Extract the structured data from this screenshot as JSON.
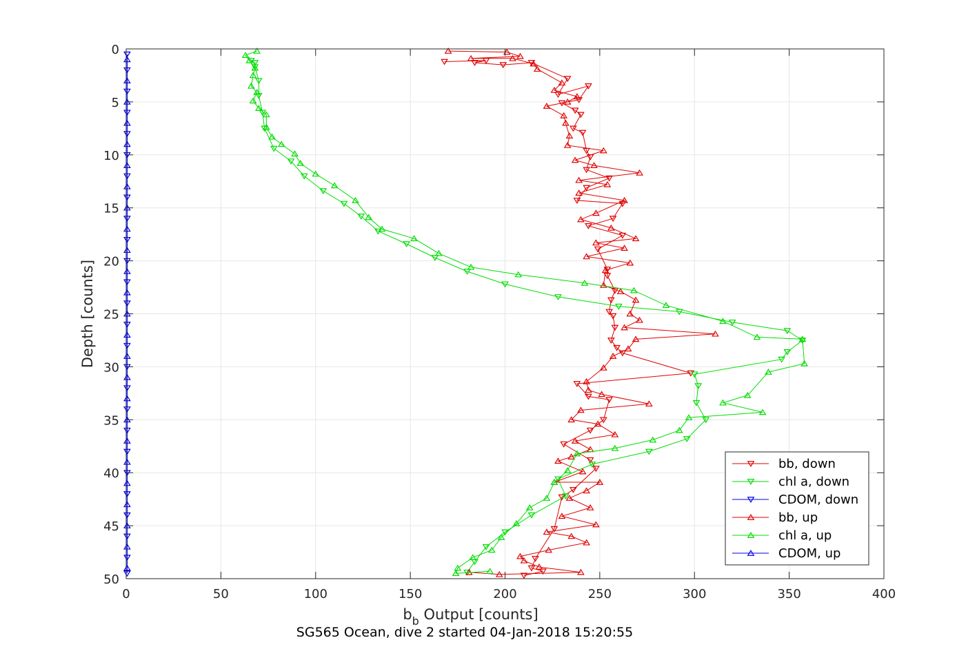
{
  "chart_data": {
    "type": "line",
    "xlabel_main": "b",
    "xlabel_sub": "b",
    "xlabel_rest": " Output [counts]",
    "ylabel": "Depth [counts]",
    "title": "SG565 Ocean, dive 2 started 04-Jan-2018 15:20:55",
    "xlim": [
      0,
      400
    ],
    "ylim": [
      0,
      50
    ],
    "y_reversed": true,
    "grid": true,
    "x_ticks": [
      "0",
      "50",
      "100",
      "150",
      "200",
      "250",
      "300",
      "350",
      "400"
    ],
    "y_ticks": [
      "0",
      "5",
      "10",
      "15",
      "20",
      "25",
      "30",
      "35",
      "40",
      "45",
      "50"
    ],
    "legend_position": "bottom-right",
    "series": [
      {
        "name": "bb, down",
        "color": "#e00000",
        "marker": "triangle-down",
        "points": [
          [
            168,
            1.2
          ],
          [
            190,
            1.1
          ],
          [
            184,
            1.3
          ],
          [
            199,
            1.5
          ],
          [
            214,
            1.3
          ],
          [
            233,
            2.8
          ],
          [
            228,
            4.3
          ],
          [
            244,
            3.5
          ],
          [
            239,
            4.8
          ],
          [
            230,
            5.1
          ],
          [
            237,
            5.8
          ],
          [
            240,
            6.2
          ],
          [
            236,
            7.5
          ],
          [
            241,
            7.9
          ],
          [
            243,
            9.6
          ],
          [
            245,
            10.2
          ],
          [
            243,
            11.4
          ],
          [
            255,
            12.2
          ],
          [
            243,
            13.1
          ],
          [
            238,
            14.3
          ],
          [
            262,
            14.6
          ],
          [
            257,
            16.0
          ],
          [
            244,
            16.7
          ],
          [
            262,
            17.6
          ],
          [
            249,
            18.9
          ],
          [
            254,
            20.8
          ],
          [
            254,
            21.4
          ],
          [
            258,
            22.8
          ],
          [
            256,
            23.7
          ],
          [
            255,
            24.8
          ],
          [
            257,
            25.2
          ],
          [
            258,
            26.3
          ],
          [
            256,
            27.5
          ],
          [
            259,
            28.2
          ],
          [
            262,
            28.7
          ],
          [
            298,
            30.6
          ],
          [
            238,
            31.6
          ],
          [
            244,
            32.8
          ],
          [
            255,
            33.1
          ],
          [
            252,
            35.0
          ],
          [
            245,
            36.0
          ],
          [
            231,
            37.3
          ],
          [
            245,
            38.8
          ],
          [
            248,
            39.6
          ],
          [
            236,
            41.6
          ],
          [
            230,
            42.3
          ],
          [
            226,
            45.3
          ],
          [
            216,
            48.1
          ],
          [
            214,
            49.0
          ],
          [
            220,
            49.3
          ],
          [
            210,
            49.7
          ]
        ]
      },
      {
        "name": "chl a, down",
        "color": "#00dd00",
        "marker": "triangle-down",
        "points": [
          [
            66,
            1.1
          ],
          [
            68,
            1.3
          ],
          [
            68,
            1.7
          ],
          [
            70,
            3.0
          ],
          [
            70,
            4.4
          ],
          [
            72,
            6.0
          ],
          [
            73,
            7.5
          ],
          [
            78,
            9.4
          ],
          [
            87,
            10.6
          ],
          [
            94,
            12.0
          ],
          [
            104,
            13.4
          ],
          [
            115,
            14.6
          ],
          [
            124,
            15.8
          ],
          [
            133,
            17.2
          ],
          [
            148,
            18.4
          ],
          [
            163,
            19.7
          ],
          [
            180,
            21.0
          ],
          [
            200,
            22.2
          ],
          [
            228,
            23.4
          ],
          [
            260,
            24.3
          ],
          [
            292,
            24.8
          ],
          [
            320,
            25.8
          ],
          [
            349,
            26.6
          ],
          [
            357,
            27.5
          ],
          [
            349,
            28.6
          ],
          [
            346,
            29.3
          ],
          [
            300,
            30.7
          ],
          [
            302,
            31.8
          ],
          [
            301,
            33.4
          ],
          [
            306,
            35.0
          ],
          [
            296,
            36.8
          ],
          [
            276,
            38.0
          ],
          [
            246,
            39.2
          ],
          [
            228,
            40.6
          ],
          [
            232,
            42.2
          ],
          [
            214,
            44.0
          ],
          [
            200,
            45.6
          ],
          [
            190,
            47.0
          ],
          [
            184,
            48.4
          ],
          [
            180,
            49.4
          ]
        ]
      },
      {
        "name": "CDOM, down",
        "color": "#0000ee",
        "marker": "triangle-down",
        "points": [
          [
            0.5,
            0.5
          ],
          [
            0.5,
            2.0
          ],
          [
            0.5,
            4.0
          ],
          [
            0.5,
            6.0
          ],
          [
            0.5,
            8.0
          ],
          [
            0.5,
            10.0
          ],
          [
            0.5,
            12.0
          ],
          [
            0.5,
            14.0
          ],
          [
            0.5,
            16.0
          ],
          [
            0.5,
            18.0
          ],
          [
            0.5,
            20.0
          ],
          [
            0.5,
            22.0
          ],
          [
            0.5,
            24.0
          ],
          [
            0.5,
            26.0
          ],
          [
            0.5,
            28.0
          ],
          [
            0.5,
            30.0
          ],
          [
            0.5,
            32.0
          ],
          [
            0.5,
            34.0
          ],
          [
            0.5,
            36.0
          ],
          [
            0.5,
            38.0
          ],
          [
            0.5,
            40.0
          ],
          [
            0.5,
            42.0
          ],
          [
            0.5,
            44.0
          ],
          [
            0.5,
            46.0
          ],
          [
            0.5,
            48.0
          ],
          [
            0.5,
            49.5
          ]
        ]
      },
      {
        "name": "bb, up",
        "color": "#e00000",
        "marker": "triangle-up",
        "points": [
          [
            170,
            0.2
          ],
          [
            201,
            0.3
          ],
          [
            208,
            0.7
          ],
          [
            182,
            0.9
          ],
          [
            204,
            0.9
          ],
          [
            215,
            1.4
          ],
          [
            217,
            1.9
          ],
          [
            230,
            3.2
          ],
          [
            226,
            3.9
          ],
          [
            238,
            4.5
          ],
          [
            233,
            5.0
          ],
          [
            222,
            5.4
          ],
          [
            231,
            6.3
          ],
          [
            232,
            7.0
          ],
          [
            234,
            8.2
          ],
          [
            233,
            9.1
          ],
          [
            252,
            9.6
          ],
          [
            237,
            10.5
          ],
          [
            247,
            11.0
          ],
          [
            271,
            11.7
          ],
          [
            239,
            12.4
          ],
          [
            254,
            12.8
          ],
          [
            239,
            13.6
          ],
          [
            263,
            14.3
          ],
          [
            248,
            15.5
          ],
          [
            240,
            16.1
          ],
          [
            256,
            16.9
          ],
          [
            269,
            17.9
          ],
          [
            248,
            18.3
          ],
          [
            263,
            18.8
          ],
          [
            243,
            19.6
          ],
          [
            266,
            20.2
          ],
          [
            253,
            20.9
          ],
          [
            252,
            22.3
          ],
          [
            261,
            22.9
          ],
          [
            269,
            23.7
          ],
          [
            266,
            25.0
          ],
          [
            271,
            25.6
          ],
          [
            263,
            26.3
          ],
          [
            311,
            26.9
          ],
          [
            269,
            27.4
          ],
          [
            265,
            28.3
          ],
          [
            257,
            29.0
          ],
          [
            252,
            30.1
          ],
          [
            243,
            31.4
          ],
          [
            244,
            32.2
          ],
          [
            251,
            32.6
          ],
          [
            276,
            33.5
          ],
          [
            240,
            34.1
          ],
          [
            235,
            35.0
          ],
          [
            249,
            35.4
          ],
          [
            258,
            36.4
          ],
          [
            237,
            37.0
          ],
          [
            245,
            37.8
          ],
          [
            235,
            38.5
          ],
          [
            228,
            38.9
          ],
          [
            241,
            39.9
          ],
          [
            226,
            40.9
          ],
          [
            250,
            40.9
          ],
          [
            243,
            41.7
          ],
          [
            234,
            42.4
          ],
          [
            245,
            43.3
          ],
          [
            230,
            44.1
          ],
          [
            248,
            44.9
          ],
          [
            222,
            45.6
          ],
          [
            235,
            46.0
          ],
          [
            243,
            46.6
          ],
          [
            223,
            47.3
          ],
          [
            208,
            47.9
          ],
          [
            210,
            48.3
          ],
          [
            218,
            48.9
          ],
          [
            240,
            49.4
          ],
          [
            197,
            49.6
          ],
          [
            181,
            49.4
          ]
        ]
      },
      {
        "name": "chl a, up",
        "color": "#00dd00",
        "marker": "triangle-up",
        "points": [
          [
            69,
            0.2
          ],
          [
            63,
            0.6
          ],
          [
            65,
            1.1
          ],
          [
            68,
            1.8
          ],
          [
            67,
            2.5
          ],
          [
            66,
            3.5
          ],
          [
            69,
            4.1
          ],
          [
            67,
            4.9
          ],
          [
            70,
            5.6
          ],
          [
            74,
            6.2
          ],
          [
            74,
            7.4
          ],
          [
            77,
            8.3
          ],
          [
            82,
            9.0
          ],
          [
            89,
            9.9
          ],
          [
            92,
            10.8
          ],
          [
            100,
            11.8
          ],
          [
            110,
            12.9
          ],
          [
            121,
            14.3
          ],
          [
            128,
            15.9
          ],
          [
            135,
            17.0
          ],
          [
            152,
            17.9
          ],
          [
            165,
            19.3
          ],
          [
            182,
            20.6
          ],
          [
            207,
            21.3
          ],
          [
            242,
            22.1
          ],
          [
            268,
            22.8
          ],
          [
            285,
            24.2
          ],
          [
            315,
            25.7
          ],
          [
            333,
            27.2
          ],
          [
            357,
            27.4
          ],
          [
            358,
            29.7
          ],
          [
            339,
            30.5
          ],
          [
            328,
            32.7
          ],
          [
            315,
            33.4
          ],
          [
            336,
            34.3
          ],
          [
            297,
            34.8
          ],
          [
            292,
            36.0
          ],
          [
            278,
            36.9
          ],
          [
            258,
            37.7
          ],
          [
            238,
            38.2
          ],
          [
            233,
            39.8
          ],
          [
            226,
            40.9
          ],
          [
            222,
            42.4
          ],
          [
            213,
            43.3
          ],
          [
            206,
            44.8
          ],
          [
            198,
            46.1
          ],
          [
            193,
            47.3
          ],
          [
            183,
            48.0
          ],
          [
            175,
            49.0
          ],
          [
            174,
            49.5
          ],
          [
            192,
            49.3
          ]
        ]
      },
      {
        "name": "CDOM, up",
        "color": "#0000ee",
        "marker": "triangle-up",
        "points": [
          [
            0.5,
            1.0
          ],
          [
            0.5,
            3.0
          ],
          [
            0.5,
            5.0
          ],
          [
            0.5,
            7.0
          ],
          [
            0.5,
            9.0
          ],
          [
            0.5,
            11.0
          ],
          [
            0.5,
            13.0
          ],
          [
            0.5,
            15.0
          ],
          [
            0.5,
            17.0
          ],
          [
            0.5,
            19.0
          ],
          [
            0.5,
            21.0
          ],
          [
            0.5,
            23.0
          ],
          [
            0.5,
            25.0
          ],
          [
            0.5,
            27.0
          ],
          [
            0.5,
            29.0
          ],
          [
            0.5,
            31.0
          ],
          [
            0.5,
            33.0
          ],
          [
            0.5,
            35.0
          ],
          [
            0.5,
            37.0
          ],
          [
            0.5,
            39.0
          ],
          [
            0.5,
            41.0
          ],
          [
            0.5,
            43.0
          ],
          [
            0.5,
            45.0
          ],
          [
            0.5,
            47.0
          ],
          [
            0.5,
            49.0
          ]
        ]
      }
    ]
  }
}
